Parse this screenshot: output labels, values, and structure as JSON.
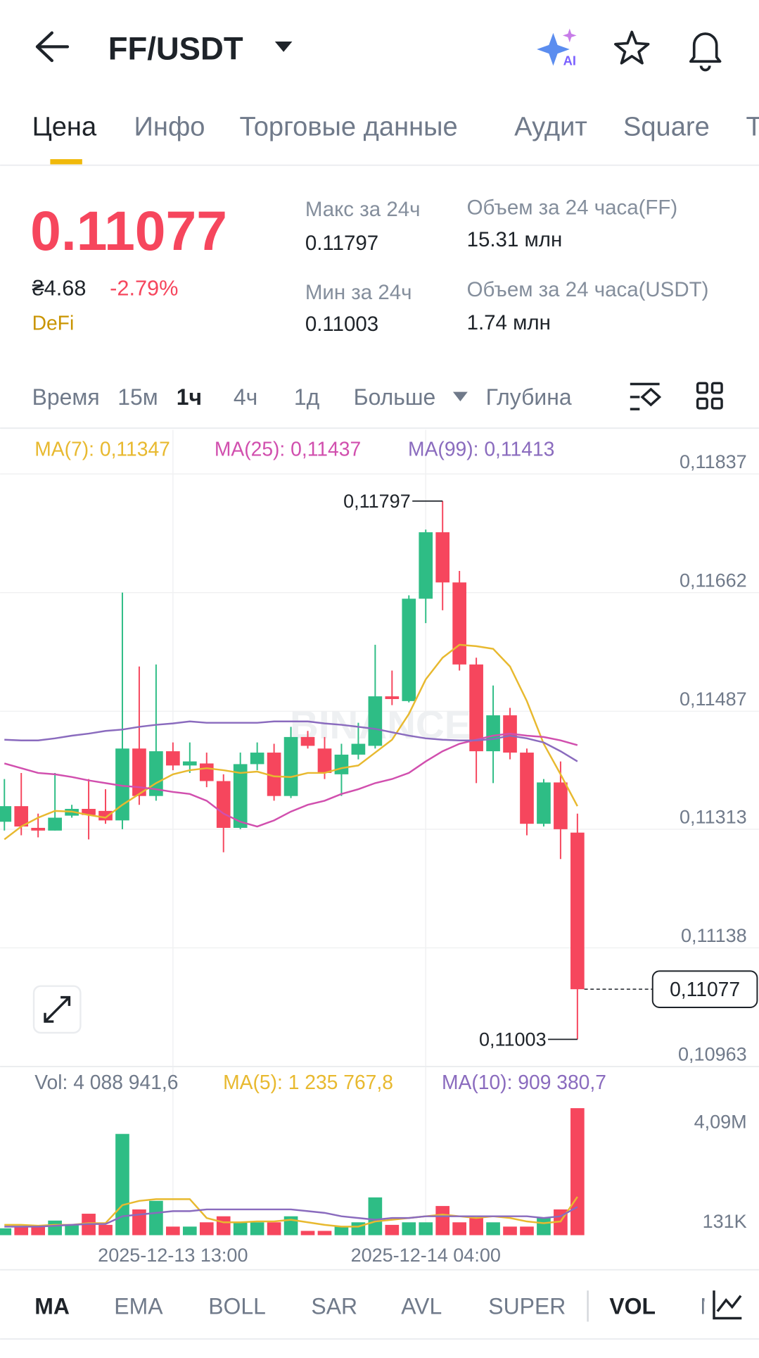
{
  "header": {
    "title": "FF/USDT",
    "ai_badge": "AI"
  },
  "tabs": [
    "Цена",
    "Инфо",
    "Торговые данные",
    "Аудит",
    "Square",
    "T"
  ],
  "price": {
    "last": "0.11077",
    "fiat": "₴4.68",
    "change": "-2.79%",
    "tag": "DeFi"
  },
  "stats": [
    {
      "label": "Макс за 24ч",
      "value": "0.11797"
    },
    {
      "label": "Мин за 24ч",
      "value": "0.11003"
    },
    {
      "label": "Объем за 24 часа(FF)",
      "value": "15.31 млн"
    },
    {
      "label": "Объем за 24 часа(USDT)",
      "value": "1.74 млн"
    }
  ],
  "intervals": [
    "Время",
    "15м",
    "1ч",
    "4ч",
    "1д",
    "Больше",
    "Глубина"
  ],
  "indicators": [
    "MA",
    "EMA",
    "BOLL",
    "SAR",
    "AVL",
    "SUPER",
    "VOL",
    "M"
  ],
  "chart_data": {
    "type": "candlestick",
    "watermark": "BINANCE",
    "up_color": "#2ebd85",
    "down_color": "#f6465d",
    "categories": [
      null,
      null,
      null,
      null,
      null,
      null,
      null,
      null,
      null,
      null,
      "2025-12-13 13:00",
      null,
      null,
      null,
      null,
      null,
      null,
      null,
      null,
      null,
      null,
      null,
      null,
      null,
      null,
      "2025-12-14 04:00",
      null,
      null,
      null,
      null,
      null,
      null,
      null,
      null,
      null
    ],
    "candles": {
      "open": [
        0.11324,
        0.11347,
        0.11315,
        0.11311,
        0.11333,
        0.11343,
        0.1134,
        0.11326,
        0.11432,
        0.11362,
        0.11428,
        0.11407,
        0.1141,
        0.11384,
        0.11315,
        0.11409,
        0.11426,
        0.11362,
        0.11449,
        0.11432,
        0.11394,
        0.11423,
        0.11436,
        0.11509,
        0.11502,
        0.11653,
        0.11751,
        0.11677,
        0.11556,
        0.11428,
        0.11481,
        0.11426,
        0.11321,
        0.11382,
        0.11308
      ],
      "high": [
        0.11387,
        0.11396,
        0.11336,
        0.11396,
        0.11349,
        0.11387,
        0.11372,
        0.11662,
        0.11553,
        0.11556,
        0.11441,
        0.11441,
        0.11426,
        0.11394,
        0.11426,
        0.11441,
        0.11439,
        0.11464,
        0.11458,
        0.11449,
        0.11439,
        0.1147,
        0.11585,
        0.11547,
        0.11658,
        0.11755,
        0.11797,
        0.11694,
        0.11566,
        0.11525,
        0.11492,
        0.11432,
        0.11387,
        0.11413,
        0.11336
      ],
      "low": [
        0.11311,
        0.11304,
        0.11301,
        0.11311,
        0.1133,
        0.11298,
        0.11321,
        0.11313,
        0.11349,
        0.11355,
        0.114,
        0.11396,
        0.11375,
        0.11279,
        0.11313,
        0.114,
        0.11355,
        0.11359,
        0.11432,
        0.11387,
        0.11362,
        0.11416,
        0.11432,
        0.11496,
        0.115,
        0.11617,
        0.11636,
        0.11547,
        0.11381,
        0.11381,
        0.11416,
        0.11304,
        0.11317,
        0.11269,
        0.11003
      ],
      "close": [
        0.11347,
        0.11317,
        0.11311,
        0.1133,
        0.11343,
        0.11334,
        0.11326,
        0.11432,
        0.11362,
        0.11428,
        0.11407,
        0.11413,
        0.11384,
        0.11315,
        0.11409,
        0.11426,
        0.11362,
        0.11449,
        0.11436,
        0.11396,
        0.11423,
        0.11439,
        0.11509,
        0.11505,
        0.11653,
        0.11751,
        0.11677,
        0.11556,
        0.11428,
        0.11481,
        0.11426,
        0.11321,
        0.11382,
        0.11313,
        0.11077
      ]
    },
    "series": [
      {
        "name": "MA(7): 0,11347",
        "color": "#e8b92f",
        "values": [
          0.11298,
          0.11317,
          0.1133,
          0.1134,
          0.11339,
          0.11334,
          0.1133,
          0.11349,
          0.11365,
          0.11381,
          0.11394,
          0.114,
          0.11403,
          0.114,
          0.11396,
          0.11398,
          0.11391,
          0.1139,
          0.11396,
          0.11396,
          0.11403,
          0.11407,
          0.11426,
          0.11445,
          0.11483,
          0.11534,
          0.11566,
          0.11585,
          0.11583,
          0.11579,
          0.11553,
          0.11502,
          0.11439,
          0.11394,
          0.11347
        ]
      },
      {
        "name": "MA(25): 0,11437",
        "color": "#d14fae",
        "values": [
          0.1141,
          0.11403,
          0.11396,
          0.11394,
          0.1139,
          0.11385,
          0.11381,
          0.11377,
          0.11375,
          0.11372,
          0.11368,
          0.11365,
          0.11355,
          0.11336,
          0.11324,
          0.11317,
          0.11326,
          0.11339,
          0.11349,
          0.11355,
          0.11365,
          0.11372,
          0.11381,
          0.11387,
          0.11396,
          0.11413,
          0.11428,
          0.11439,
          0.11445,
          0.11451,
          0.11454,
          0.11451,
          0.11449,
          0.11444,
          0.11437
        ]
      },
      {
        "name": "MA(99): 0,11413",
        "color": "#8a6bbe",
        "values": [
          0.11445,
          0.11444,
          0.11444,
          0.11447,
          0.11451,
          0.11454,
          0.11458,
          0.1146,
          0.11464,
          0.11467,
          0.11469,
          0.11472,
          0.1147,
          0.1147,
          0.1147,
          0.1147,
          0.11472,
          0.11472,
          0.11472,
          0.11469,
          0.11467,
          0.11464,
          0.11461,
          0.11456,
          0.11451,
          0.11447,
          0.11445,
          0.11444,
          0.11444,
          0.11446,
          0.11451,
          0.11447,
          0.11441,
          0.11428,
          0.11413
        ]
      }
    ],
    "ylim": [
      0.10963,
      0.11902
    ],
    "yticks": [
      {
        "value": 0.11837,
        "label": "0,11837"
      },
      {
        "value": 0.11662,
        "label": "0,11662"
      },
      {
        "value": 0.11487,
        "label": "0,11487"
      },
      {
        "value": 0.11313,
        "label": "0,11313"
      },
      {
        "value": 0.11138,
        "label": "0,11138"
      },
      {
        "value": 0.10963,
        "label": "0,10963"
      }
    ],
    "grid": true,
    "annotations": {
      "high": {
        "value": 0.11797,
        "label": "0,11797"
      },
      "low": {
        "value": 0.11003,
        "label": "0,11003"
      },
      "last": {
        "value": 0.11077,
        "label": "0,11077"
      }
    },
    "volume": {
      "label": "Vol: 4 088 941,6",
      "values": [
        221000,
        276000,
        276000,
        470000,
        332000,
        691000,
        332000,
        3260000,
        829000,
        1105000,
        276000,
        276000,
        414000,
        608000,
        414000,
        414000,
        414000,
        608000,
        138000,
        138000,
        276000,
        414000,
        1216000,
        332000,
        414000,
        414000,
        939000,
        414000,
        553000,
        414000,
        276000,
        276000,
        553000,
        829000,
        4088941.6
      ],
      "ylim": [
        0,
        4400000
      ],
      "yticks": [
        {
          "value": 4090000,
          "label": "4,09M"
        },
        {
          "value": 131000,
          "label": "131K"
        }
      ],
      "series": [
        {
          "name": "MA(5): 1 235 767,8",
          "color": "#e8b92f",
          "values": [
            332000,
            332000,
            304000,
            332000,
            332000,
            387000,
            387000,
            967000,
            1105000,
            1160000,
            1160000,
            1160000,
            553000,
            414000,
            414000,
            442000,
            442000,
            497000,
            414000,
            332000,
            276000,
            276000,
            442000,
            497000,
            553000,
            608000,
            663000,
            608000,
            553000,
            608000,
            553000,
            442000,
            387000,
            442000,
            1235767.8
          ]
        },
        {
          "name": "MA(10): 909 380,7",
          "color": "#8a6bbe",
          "values": [
            276000,
            276000,
            276000,
            304000,
            332000,
            359000,
            359000,
            608000,
            663000,
            718000,
            774000,
            774000,
            829000,
            829000,
            829000,
            829000,
            829000,
            829000,
            774000,
            718000,
            608000,
            553000,
            497000,
            553000,
            553000,
            608000,
            608000,
            608000,
            608000,
            608000,
            608000,
            608000,
            553000,
            608000,
            909380.7
          ]
        }
      ]
    }
  }
}
